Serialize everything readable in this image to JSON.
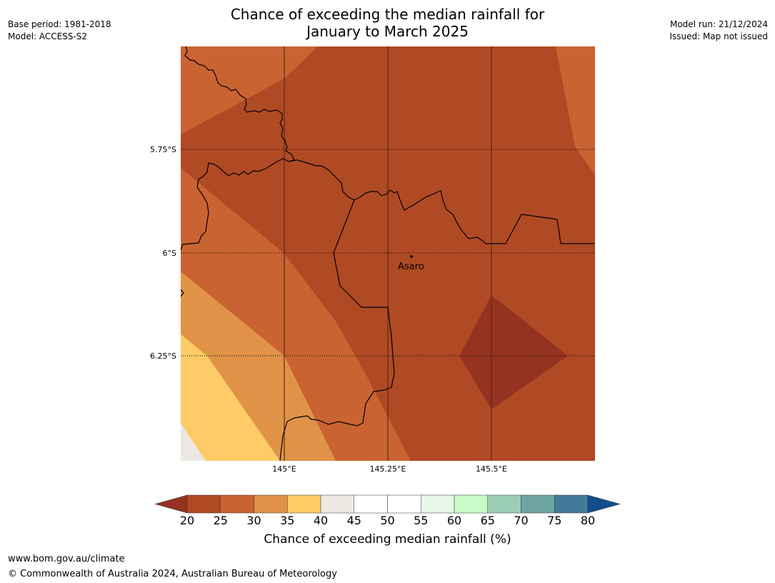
{
  "title": {
    "line1": "Chance of exceeding the median rainfall for",
    "line2": "January to March 2025"
  },
  "meta_left": {
    "base_period": "Base period: 1981-2018",
    "model": "Model: ACCESS-S2"
  },
  "meta_right": {
    "model_run": "Model run: 21/12/2024",
    "issued": "Issued: Map not issued"
  },
  "map": {
    "lat_ticks": [
      "5.75°S",
      "6°S",
      "6.25°S"
    ],
    "lon_ticks": [
      "145°E",
      "145.25°E",
      "145.5°E"
    ],
    "place": {
      "name": "Asaro"
    }
  },
  "colorbar": {
    "title": "Chance of exceeding median rainfall (%)",
    "ticks": [
      "20",
      "25",
      "30",
      "35",
      "40",
      "45",
      "50",
      "55",
      "60",
      "65",
      "70",
      "75",
      "80"
    ],
    "colors": [
      "#b04a24",
      "#c96432",
      "#e09347",
      "#fdcc66",
      "#ece8e2",
      "#ffffff",
      "#ffffff",
      "#e8f7e8",
      "#c8fac8",
      "#9cceb6",
      "#6ea4a4",
      "#427a9a"
    ],
    "under_color": "#953321",
    "over_color": "#114e8c"
  },
  "footer": {
    "url": "www.bom.gov.au/climate",
    "copyright": "© Commonwealth of Australia 2024, Australian Bureau of Meteorology"
  }
}
